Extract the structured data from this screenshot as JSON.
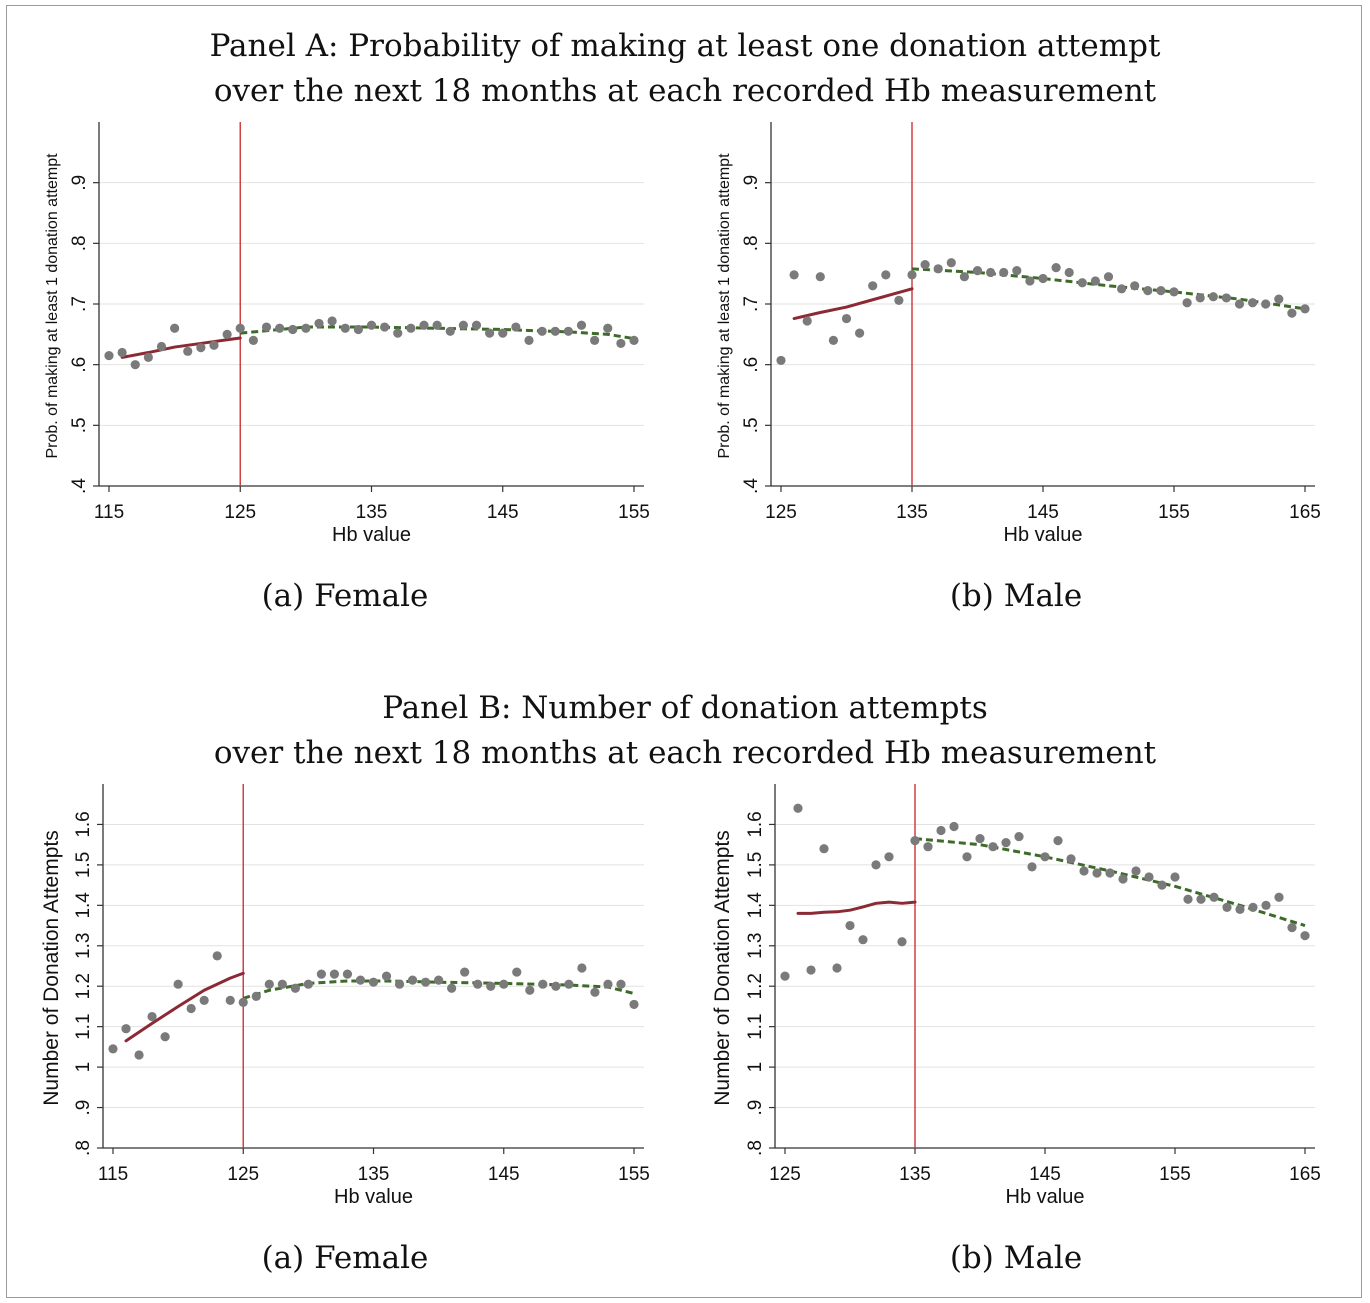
{
  "panels": {
    "a_title_line1": "Panel A: Probability of making at least one donation attempt",
    "a_title_line2": "over the next 18 months at each recorded Hb measurement",
    "b_title_line1": "Panel B: Number of donation attempts",
    "b_title_line2": "over the next 18 months at each recorded Hb measurement"
  },
  "captions": {
    "a_female": "(a) Female",
    "a_male": "(b) Male",
    "b_female": "(a) Female",
    "b_male": "(b) Male"
  },
  "colors": {
    "points": "#7a7a7a",
    "fit_below": "#8b2a35",
    "fit_above": "#3e6b2a",
    "cutoff_line": "#d04040",
    "grid": "#e2e2e2"
  },
  "chart_data": [
    {
      "type": "scatter",
      "panel": "A",
      "group": "Female",
      "xlabel": "Hb value",
      "ylabel": "Prob. of making at least 1 donation attempt",
      "xlim": [
        115,
        155
      ],
      "ylim": [
        0.4,
        1.0
      ],
      "xticks": [
        115,
        125,
        135,
        145,
        155
      ],
      "xtick_labels": [
        "115",
        "125",
        "135",
        "145",
        "155"
      ],
      "yticks": [
        0.4,
        0.5,
        0.6,
        0.7,
        0.8,
        0.9
      ],
      "ytick_labels": [
        ".4",
        ".5",
        ".6",
        ".7",
        ".8",
        ".9"
      ],
      "grid": true,
      "cutoff": 125,
      "points": {
        "x": [
          115,
          116,
          117,
          118,
          119,
          120,
          121,
          122,
          123,
          124,
          125,
          126,
          127,
          128,
          129,
          130,
          131,
          132,
          133,
          134,
          135,
          136,
          137,
          138,
          139,
          140,
          141,
          142,
          143,
          144,
          145,
          146,
          147,
          148,
          149,
          150,
          151,
          152,
          153,
          154,
          155
        ],
        "y": [
          0.615,
          0.62,
          0.6,
          0.612,
          0.63,
          0.66,
          0.622,
          0.628,
          0.632,
          0.65,
          0.66,
          0.64,
          0.662,
          0.66,
          0.658,
          0.66,
          0.668,
          0.672,
          0.66,
          0.658,
          0.665,
          0.662,
          0.652,
          0.66,
          0.665,
          0.665,
          0.655,
          0.665,
          0.665,
          0.652,
          0.652,
          0.662,
          0.64,
          0.655,
          0.655,
          0.655,
          0.665,
          0.64,
          0.66,
          0.635,
          0.64
        ]
      },
      "fit_below": {
        "x": [
          116,
          118,
          120,
          122,
          124,
          125
        ],
        "y": [
          0.612,
          0.62,
          0.629,
          0.635,
          0.641,
          0.644
        ]
      },
      "fit_above": {
        "x": [
          125,
          130,
          135,
          140,
          145,
          150,
          153,
          155
        ],
        "y": [
          0.652,
          0.662,
          0.662,
          0.66,
          0.658,
          0.654,
          0.65,
          0.643
        ]
      }
    },
    {
      "type": "scatter",
      "panel": "A",
      "group": "Male",
      "xlabel": "Hb value",
      "ylabel": "Prob. of making at least 1 donation attempt",
      "xlim": [
        125,
        165
      ],
      "ylim": [
        0.4,
        1.0
      ],
      "xticks": [
        125,
        135,
        145,
        155,
        165
      ],
      "xtick_labels": [
        "125",
        "135",
        "145",
        "155",
        "165"
      ],
      "yticks": [
        0.4,
        0.5,
        0.6,
        0.7,
        0.8,
        0.9
      ],
      "ytick_labels": [
        ".4",
        ".5",
        ".6",
        ".7",
        ".8",
        ".9"
      ],
      "grid": true,
      "cutoff": 135,
      "points": {
        "x": [
          125,
          126,
          127,
          128,
          129,
          130,
          131,
          132,
          133,
          134,
          135,
          136,
          137,
          138,
          139,
          140,
          141,
          142,
          143,
          144,
          145,
          146,
          147,
          148,
          149,
          150,
          151,
          152,
          153,
          154,
          155,
          156,
          157,
          158,
          159,
          160,
          161,
          162,
          163,
          164,
          165
        ],
        "y": [
          0.607,
          0.748,
          0.672,
          0.745,
          0.64,
          0.676,
          0.652,
          0.73,
          0.748,
          0.706,
          0.748,
          0.765,
          0.758,
          0.768,
          0.745,
          0.755,
          0.752,
          0.752,
          0.755,
          0.738,
          0.742,
          0.76,
          0.752,
          0.735,
          0.738,
          0.745,
          0.725,
          0.73,
          0.722,
          0.722,
          0.72,
          0.702,
          0.71,
          0.712,
          0.71,
          0.7,
          0.702,
          0.7,
          0.708,
          0.685,
          0.692
        ]
      },
      "fit_below": {
        "x": [
          126,
          128,
          130,
          132,
          134,
          135
        ],
        "y": [
          0.676,
          0.686,
          0.695,
          0.707,
          0.719,
          0.725
        ]
      },
      "fit_above": {
        "x": [
          135,
          140,
          145,
          150,
          155,
          160,
          165
        ],
        "y": [
          0.758,
          0.752,
          0.742,
          0.73,
          0.72,
          0.708,
          0.692
        ]
      }
    },
    {
      "type": "scatter",
      "panel": "B",
      "group": "Female",
      "xlabel": "Hb value",
      "ylabel": "Number of Donation Attempts",
      "xlim": [
        115,
        155
      ],
      "ylim": [
        0.8,
        1.7
      ],
      "xticks": [
        115,
        125,
        135,
        145,
        155
      ],
      "xtick_labels": [
        "115",
        "125",
        "135",
        "145",
        "155"
      ],
      "yticks": [
        0.8,
        0.9,
        1.0,
        1.1,
        1.2,
        1.3,
        1.4,
        1.5,
        1.6
      ],
      "ytick_labels": [
        ".8",
        ".9",
        "1",
        "1.1",
        "1.2",
        "1.3",
        "1.4",
        "1.5",
        "1.6"
      ],
      "grid": true,
      "cutoff": 125,
      "points": {
        "x": [
          115,
          116,
          117,
          118,
          119,
          120,
          121,
          122,
          123,
          124,
          125,
          126,
          127,
          128,
          129,
          130,
          131,
          132,
          133,
          134,
          135,
          136,
          137,
          138,
          139,
          140,
          141,
          142,
          143,
          144,
          145,
          146,
          147,
          148,
          149,
          150,
          151,
          152,
          153,
          154,
          155
        ],
        "y": [
          1.045,
          1.095,
          1.03,
          1.125,
          1.075,
          1.205,
          1.145,
          1.165,
          1.275,
          1.165,
          1.16,
          1.175,
          1.205,
          1.205,
          1.195,
          1.205,
          1.23,
          1.23,
          1.23,
          1.215,
          1.21,
          1.225,
          1.205,
          1.215,
          1.21,
          1.215,
          1.195,
          1.235,
          1.205,
          1.2,
          1.205,
          1.235,
          1.19,
          1.205,
          1.2,
          1.205,
          1.245,
          1.185,
          1.205,
          1.205,
          1.155
        ]
      },
      "fit_below": {
        "x": [
          116,
          118,
          120,
          122,
          124,
          125
        ],
        "y": [
          1.065,
          1.108,
          1.15,
          1.19,
          1.22,
          1.232
        ]
      },
      "fit_above": {
        "x": [
          125,
          127,
          130,
          133,
          136,
          140,
          145,
          150,
          153,
          155
        ],
        "y": [
          1.17,
          1.19,
          1.207,
          1.213,
          1.213,
          1.21,
          1.207,
          1.203,
          1.198,
          1.182
        ]
      }
    },
    {
      "type": "scatter",
      "panel": "B",
      "group": "Male",
      "xlabel": "Hb value",
      "ylabel": "Number of Donation Attempts",
      "xlim": [
        125,
        165
      ],
      "ylim": [
        0.8,
        1.7
      ],
      "xticks": [
        125,
        135,
        145,
        155,
        165
      ],
      "xtick_labels": [
        "125",
        "135",
        "145",
        "155",
        "165"
      ],
      "yticks": [
        0.8,
        0.9,
        1.0,
        1.1,
        1.2,
        1.3,
        1.4,
        1.5,
        1.6
      ],
      "ytick_labels": [
        ".8",
        ".9",
        "1",
        "1.1",
        "1.2",
        "1.3",
        "1.4",
        "1.5",
        "1.6"
      ],
      "grid": true,
      "cutoff": 135,
      "points": {
        "x": [
          125,
          126,
          127,
          128,
          129,
          130,
          131,
          132,
          133,
          134,
          135,
          136,
          137,
          138,
          139,
          140,
          141,
          142,
          143,
          144,
          145,
          146,
          147,
          148,
          149,
          150,
          151,
          152,
          153,
          154,
          155,
          156,
          157,
          158,
          159,
          160,
          161,
          162,
          163,
          164,
          165
        ],
        "y": [
          1.225,
          1.64,
          1.24,
          1.54,
          1.245,
          1.35,
          1.315,
          1.5,
          1.52,
          1.31,
          1.56,
          1.545,
          1.585,
          1.595,
          1.52,
          1.565,
          1.545,
          1.555,
          1.57,
          1.495,
          1.52,
          1.56,
          1.515,
          1.485,
          1.48,
          1.48,
          1.465,
          1.485,
          1.47,
          1.45,
          1.47,
          1.415,
          1.415,
          1.42,
          1.395,
          1.39,
          1.395,
          1.4,
          1.42,
          1.345,
          1.325
        ]
      },
      "fit_below": {
        "x": [
          126,
          127,
          128,
          129,
          130,
          131,
          132,
          133,
          134,
          135
        ],
        "y": [
          1.38,
          1.38,
          1.383,
          1.384,
          1.388,
          1.396,
          1.405,
          1.408,
          1.405,
          1.408
        ]
      },
      "fit_above": {
        "x": [
          135,
          140,
          145,
          150,
          155,
          160,
          165
        ],
        "y": [
          1.565,
          1.55,
          1.52,
          1.485,
          1.447,
          1.4,
          1.35
        ]
      }
    }
  ]
}
